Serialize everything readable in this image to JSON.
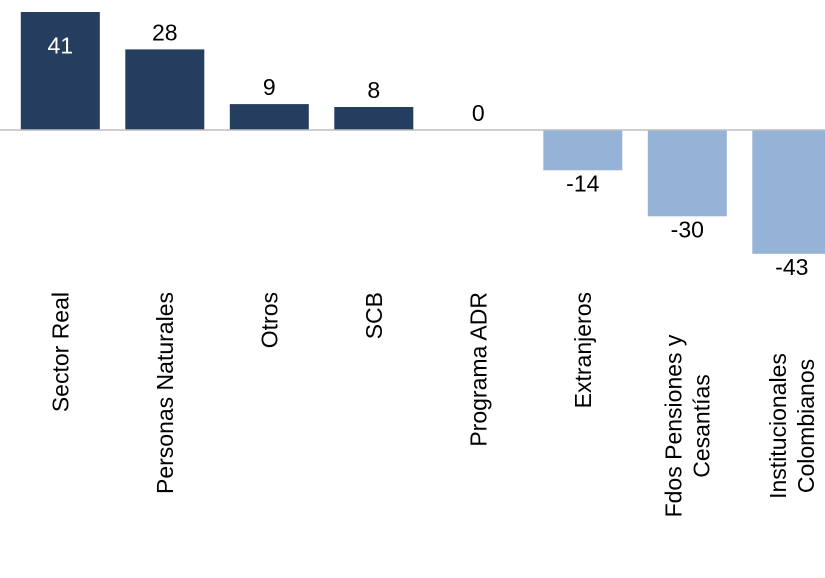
{
  "chart_data": {
    "type": "bar",
    "title": "",
    "xlabel": "",
    "ylabel": "",
    "ylim": [
      -43,
      41
    ],
    "grid": false,
    "legend": "none",
    "categories": [
      [
        "Sector Real"
      ],
      [
        "Personas Naturales"
      ],
      [
        "Otros"
      ],
      [
        "SCB"
      ],
      [
        "Programa ADR"
      ],
      [
        "Extranjeros"
      ],
      [
        "Fdos Pensiones y",
        "Cesantías"
      ],
      [
        "Institucionales",
        "Colombianos"
      ]
    ],
    "values": [
      41,
      28,
      9,
      8,
      0,
      -14,
      -30,
      -43
    ],
    "value_labels": [
      "41",
      "28",
      "9",
      "8",
      "0",
      "-14",
      "-30",
      "-43"
    ],
    "colors": {
      "positive": "#253d5f",
      "negative": "#95b3d7",
      "axis": "#bfbfbf",
      "label": "#000000",
      "inside_label": "#ffffff"
    }
  }
}
